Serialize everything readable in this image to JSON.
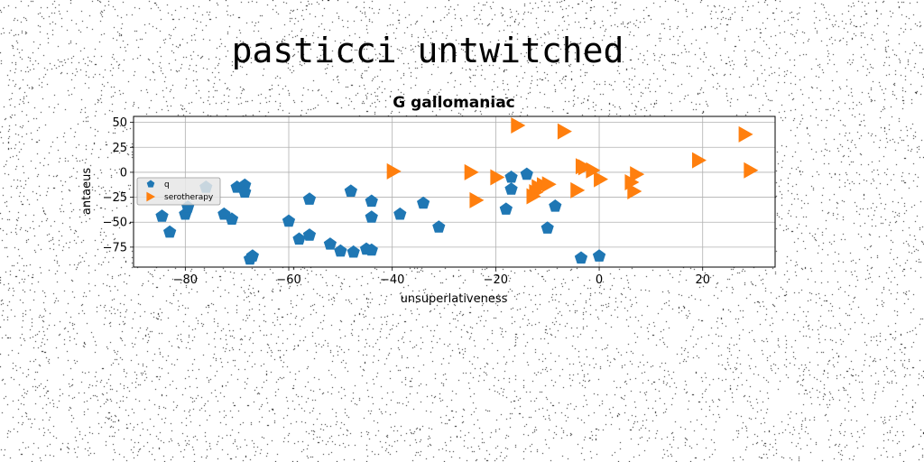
{
  "page_title": "pasticci untwitched",
  "chart_data": {
    "type": "scatter",
    "title": "G gallomaniac",
    "xlabel": "unsuperlativeness",
    "ylabel": "antaeus",
    "xlim": [
      -90,
      34
    ],
    "ylim": [
      -95,
      56
    ],
    "xticks": [
      -80,
      -60,
      -40,
      -20,
      0,
      20
    ],
    "yticks": [
      -75,
      -50,
      -25,
      0,
      25,
      50
    ],
    "grid": true,
    "legend_position": "center-left",
    "series": [
      {
        "name": "q",
        "marker": "pentagon",
        "color": "#1f77b4",
        "x": [
          -84.5,
          -83,
          -80,
          -79.5,
          -76,
          -72.5,
          -71,
          -70,
          -68.5,
          -68.5,
          -67.5,
          -67,
          -60,
          -58,
          -56,
          -56,
          -52,
          -50,
          -48,
          -47.5,
          -45,
          -44,
          -44,
          -44,
          -38.5,
          -34,
          -31,
          -18,
          -17,
          -17,
          -14,
          -10,
          -8.5,
          -3.5,
          0
        ],
        "y": [
          -44,
          -60,
          -42,
          -35,
          -15,
          -42,
          -47,
          -15,
          -13,
          -20,
          -87,
          -84,
          -49,
          -67,
          -27,
          -63,
          -72,
          -79,
          -19,
          -80,
          -77,
          -45,
          -29,
          -78,
          -42,
          -31,
          -55,
          -37,
          -5,
          -17,
          -2,
          -56,
          -34,
          -86,
          -84
        ]
      },
      {
        "name": "serotherapy",
        "marker": "triangle-right",
        "color": "#ff7f0e",
        "x": [
          -40,
          -25,
          -24,
          -20,
          -16,
          -13,
          -12.5,
          -12,
          -11,
          -10,
          -7,
          -4.5,
          -3.5,
          -3,
          -1.5,
          0,
          6,
          6.5,
          7,
          19,
          28,
          29
        ],
        "y": [
          1,
          0,
          -28,
          -5,
          47,
          -24,
          -20,
          -15,
          -13,
          -12,
          41,
          -18,
          6,
          5,
          2,
          -7,
          -10,
          -19,
          -2,
          12,
          38,
          2
        ]
      }
    ]
  }
}
